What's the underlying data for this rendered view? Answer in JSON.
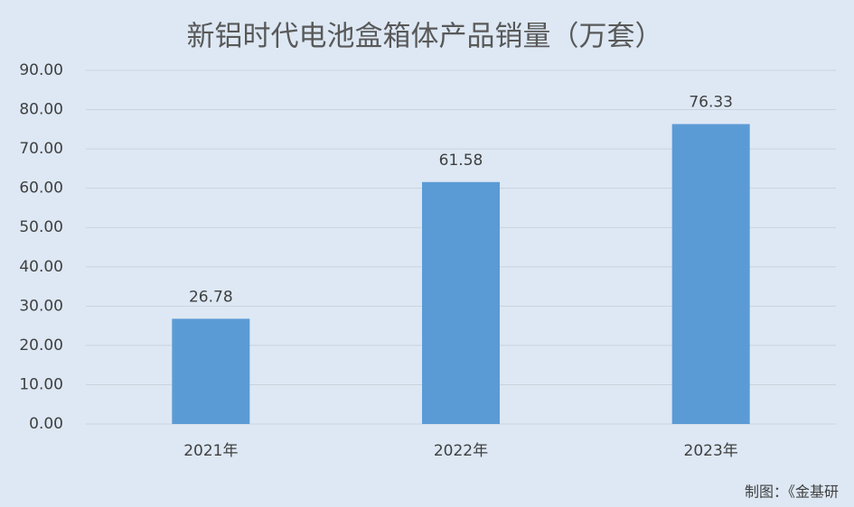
{
  "chart_data": {
    "type": "bar",
    "title": "新铝时代电池盒箱体产品销量（万套）",
    "categories": [
      "2021年",
      "2022年",
      "2023年"
    ],
    "values": [
      26.78,
      61.58,
      76.33
    ],
    "color": "#5b9bd5",
    "ylim": [
      0,
      90
    ],
    "yticks": [
      {
        "value": 0,
        "label": "0.00"
      },
      {
        "value": 10,
        "label": "10.00"
      },
      {
        "value": 20,
        "label": "20.00"
      },
      {
        "value": 30,
        "label": "30.00"
      },
      {
        "value": 40,
        "label": "40.00"
      },
      {
        "value": 50,
        "label": "50.00"
      },
      {
        "value": 60,
        "label": "60.00"
      },
      {
        "value": 70,
        "label": "70.00"
      },
      {
        "value": 80,
        "label": "80.00"
      },
      {
        "value": 90,
        "label": "90.00"
      }
    ],
    "grid": true,
    "source": "制图：《金基研"
  }
}
